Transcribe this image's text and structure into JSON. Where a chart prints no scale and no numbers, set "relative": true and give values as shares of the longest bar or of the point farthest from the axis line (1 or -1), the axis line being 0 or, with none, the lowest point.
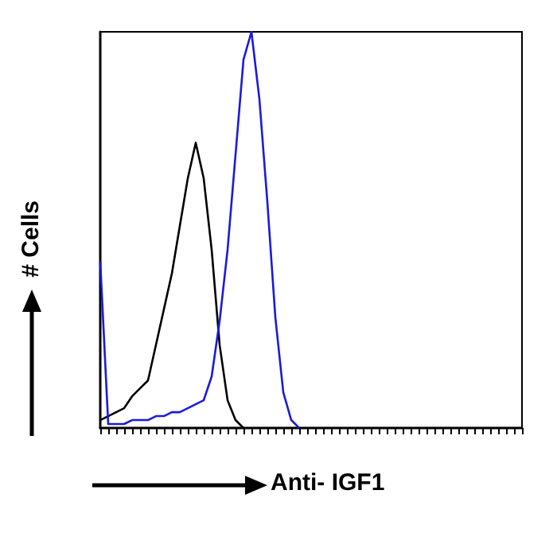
{
  "chart_data": {
    "type": "line",
    "relative": true,
    "xlabel": "Anti- IGF1",
    "ylabel": "# Cells",
    "grid": false,
    "line_style": "solid",
    "categories": [
      null,
      null,
      null,
      null,
      null,
      null,
      null,
      null,
      null,
      null,
      null,
      null,
      null,
      null,
      null,
      null,
      null,
      null,
      null,
      null,
      null,
      null,
      null,
      null,
      null,
      null,
      null,
      null,
      null,
      null,
      null,
      null,
      null,
      null,
      null,
      null,
      null,
      null,
      null,
      null,
      null,
      null,
      null,
      null,
      null,
      null,
      null,
      null,
      null,
      null,
      null,
      null,
      null,
      null
    ],
    "series": [
      {
        "color": "#000000",
        "values": [
          0.02,
          0.03,
          0.04,
          0.05,
          0.08,
          0.1,
          0.12,
          0.21,
          0.3,
          0.39,
          0.51,
          0.63,
          0.72,
          0.63,
          0.45,
          0.21,
          0.07,
          0.02,
          0,
          null,
          null,
          null,
          null,
          null,
          null,
          null,
          null,
          null,
          null,
          null,
          null,
          null,
          null,
          null,
          null,
          null,
          null,
          null,
          null,
          null,
          null,
          null,
          null,
          null,
          null,
          null,
          null,
          null,
          null,
          null,
          null,
          null,
          null,
          null
        ]
      },
      {
        "color": "#1a1adc",
        "values": [
          0.42,
          0.01,
          0.01,
          0.01,
          0.02,
          0.02,
          0.02,
          0.03,
          0.03,
          0.04,
          0.04,
          0.05,
          0.06,
          0.07,
          0.13,
          0.27,
          0.45,
          0.69,
          0.93,
          1,
          0.83,
          0.57,
          0.28,
          0.09,
          0.02,
          0,
          null,
          null,
          null,
          null,
          null,
          null,
          null,
          null,
          null,
          null,
          null,
          null,
          null,
          null,
          null,
          null,
          null,
          null,
          null,
          null,
          null,
          null,
          null,
          null,
          null,
          null,
          null,
          null
        ]
      }
    ]
  }
}
